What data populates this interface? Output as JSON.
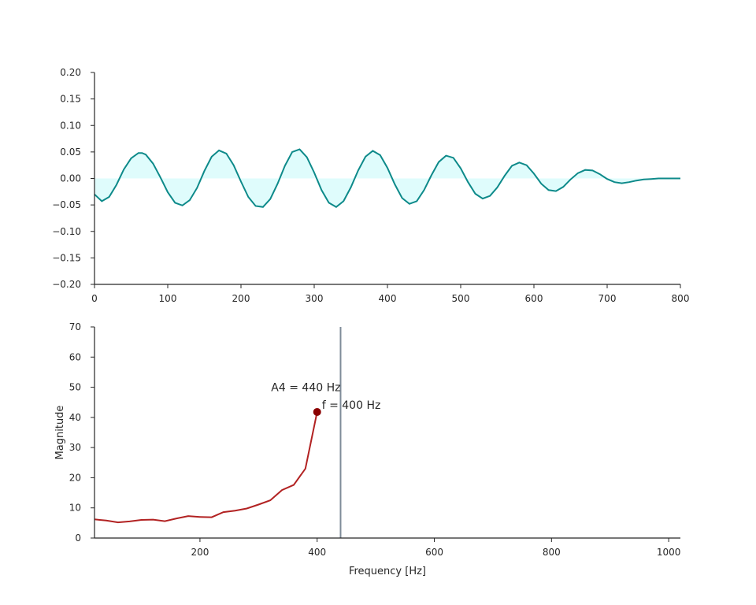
{
  "chart_data": [
    {
      "type": "area",
      "title": "",
      "xlabel": "",
      "ylabel": "",
      "xlim": [
        0,
        800
      ],
      "ylim": [
        -0.2,
        0.2
      ],
      "xticks": [
        "0",
        "100",
        "200",
        "300",
        "400",
        "500",
        "600",
        "700",
        "800"
      ],
      "yticks": [
        "−0.20",
        "−0.15",
        "−0.10",
        "−0.05",
        "0.00",
        "0.05",
        "0.10",
        "0.15",
        "0.20"
      ],
      "grid": false,
      "colors": {
        "line": "#0d8a8a",
        "fill": "#dffcfc"
      },
      "series": [
        {
          "x": [
            0,
            10,
            20,
            30,
            40,
            50,
            60,
            65,
            70,
            80,
            90,
            100,
            110,
            120,
            130,
            140,
            150,
            160,
            170,
            180,
            190,
            200,
            210,
            220,
            230,
            240,
            250,
            260,
            270,
            280,
            290,
            300,
            310,
            320,
            330,
            340,
            350,
            360,
            370,
            380,
            390,
            400,
            410,
            420,
            430,
            440,
            450,
            460,
            470,
            480,
            490,
            500,
            510,
            520,
            530,
            540,
            550,
            560,
            570,
            580,
            590,
            600,
            610,
            620,
            630,
            640,
            650,
            660,
            670,
            680,
            690,
            700,
            710,
            720,
            730,
            740,
            750,
            760,
            770,
            780,
            790,
            800
          ],
          "values": [
            -0.03,
            -0.043,
            -0.035,
            -0.012,
            0.017,
            0.038,
            0.048,
            0.048,
            0.045,
            0.028,
            0.002,
            -0.026,
            -0.046,
            -0.051,
            -0.041,
            -0.018,
            0.014,
            0.041,
            0.053,
            0.047,
            0.025,
            -0.006,
            -0.035,
            -0.052,
            -0.054,
            -0.039,
            -0.01,
            0.024,
            0.05,
            0.055,
            0.04,
            0.011,
            -0.022,
            -0.046,
            -0.054,
            -0.043,
            -0.017,
            0.015,
            0.041,
            0.052,
            0.044,
            0.02,
            -0.011,
            -0.037,
            -0.048,
            -0.043,
            -0.022,
            0.006,
            0.031,
            0.043,
            0.039,
            0.019,
            -0.007,
            -0.029,
            -0.038,
            -0.033,
            -0.017,
            0.005,
            0.024,
            0.03,
            0.025,
            0.009,
            -0.01,
            -0.022,
            -0.024,
            -0.016,
            -0.002,
            0.01,
            0.016,
            0.015,
            0.008,
            -0.001,
            -0.007,
            -0.009,
            -0.007,
            -0.004,
            -0.002,
            -0.001,
            0,
            0,
            0,
            0
          ]
        }
      ]
    },
    {
      "type": "line",
      "title": "",
      "xlabel": "Frequency [Hz]",
      "ylabel": "Magnitude",
      "xlim": [
        20,
        1020
      ],
      "ylim": [
        0,
        70
      ],
      "xticks": [
        "200",
        "400",
        "600",
        "800",
        "1000"
      ],
      "yticks": [
        "0",
        "10",
        "20",
        "30",
        "40",
        "50",
        "60",
        "70"
      ],
      "grid": false,
      "colors": {
        "line": "#b22222",
        "marker": "#8b0000",
        "vline": "#7f8c99"
      },
      "series": [
        {
          "x": [
            20,
            40,
            60,
            80,
            100,
            120,
            140,
            160,
            180,
            200,
            220,
            240,
            260,
            280,
            300,
            320,
            340,
            360,
            380,
            400
          ],
          "values": [
            6.2,
            5.8,
            5.2,
            5.5,
            6.0,
            6.1,
            5.6,
            6.5,
            7.3,
            7.0,
            6.9,
            8.6,
            9.1,
            9.8,
            11.1,
            12.5,
            15.9,
            17.6,
            23.0,
            41.8
          ]
        }
      ],
      "vline": {
        "x": 440
      },
      "marker": {
        "x": 400,
        "y": 41.8
      },
      "annotations": {
        "vline_label": "A4 = 440 Hz",
        "peak_label": "f = 400 Hz"
      }
    }
  ]
}
